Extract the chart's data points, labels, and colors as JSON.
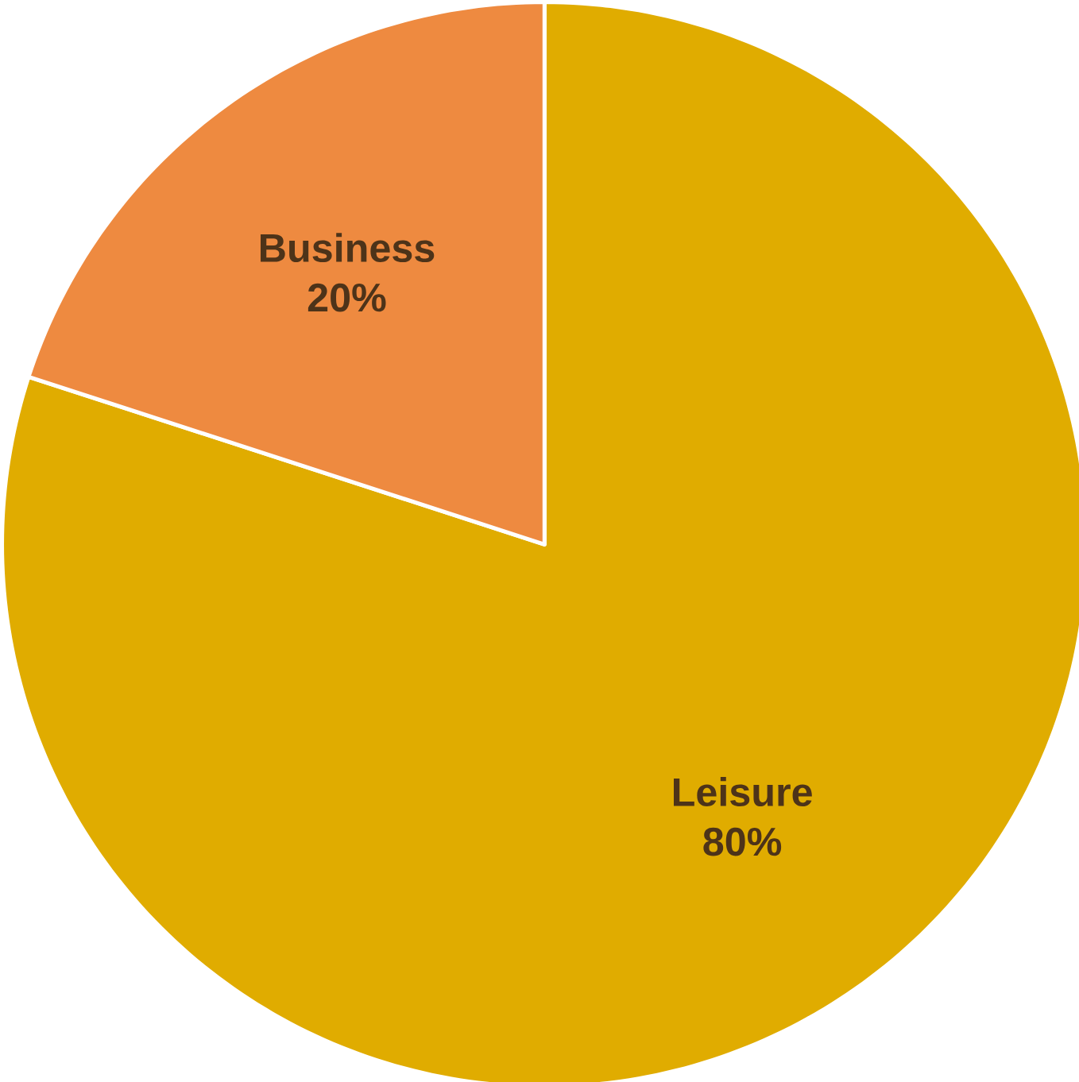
{
  "chart_data": {
    "type": "pie",
    "categories": [
      "Leisure",
      "Business"
    ],
    "values": [
      80,
      20
    ],
    "value_labels": [
      "80%",
      "20%"
    ],
    "colors": [
      "#e0ac00",
      "#ee8a40"
    ]
  }
}
